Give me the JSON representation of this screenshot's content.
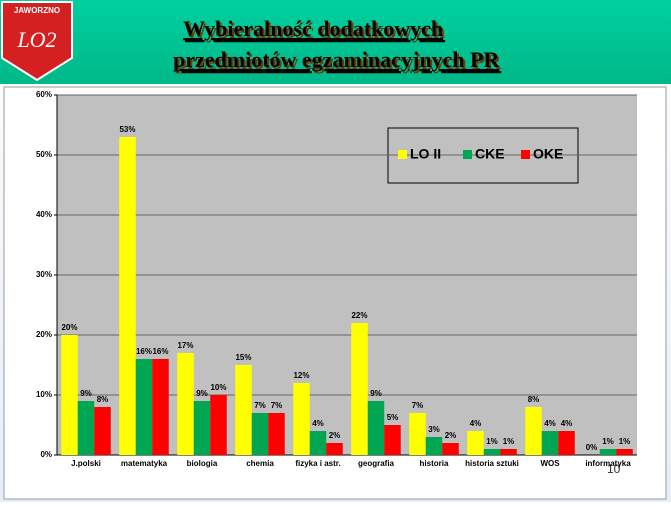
{
  "header": {
    "logo_text": "JAWORZNO",
    "logo_mark": "LO2",
    "title_lines": [
      "Wybieralność dodatkowych",
      "przedmiotów egzaminacyjnych PR"
    ]
  },
  "slide_number": "10",
  "chart_data": {
    "type": "bar",
    "categories": [
      "J.polski",
      "matematyka",
      "biologia",
      "chemia",
      "fizyka i astr.",
      "geografia",
      "historia",
      "historia sztuki",
      "WOS",
      "informatyka"
    ],
    "series": [
      {
        "name": "LO II",
        "color": "#ffff00",
        "values": [
          20,
          53,
          17,
          15,
          12,
          22,
          7,
          4,
          8,
          0
        ],
        "value_labels": [
          "20%",
          "53%",
          "17%",
          "15%",
          "12%",
          "22%",
          "7%",
          "4%",
          "8%",
          "0%"
        ]
      },
      {
        "name": "CKE",
        "color": "#00a651",
        "values": [
          9,
          16,
          9,
          7,
          4,
          9,
          3,
          1,
          4,
          1
        ],
        "value_labels": [
          "9%",
          "16%",
          "9%",
          "7%",
          "4%",
          "9%",
          "3%",
          "1%",
          "4%",
          "1%"
        ]
      },
      {
        "name": "OKE",
        "color": "#ff0000",
        "values": [
          8,
          16,
          10,
          7,
          2,
          5,
          2,
          1,
          4,
          1
        ],
        "value_labels": [
          "8%",
          "16%",
          "10%",
          "7%",
          "2%",
          "5%",
          "2%",
          "1%",
          "4%",
          "1%"
        ]
      }
    ],
    "ylim": [
      0,
      60
    ],
    "yticks": [
      {
        "value": 0,
        "label": "0%"
      },
      {
        "value": 10,
        "label": "10%"
      },
      {
        "value": 20,
        "label": "20%"
      },
      {
        "value": 30,
        "label": "30%"
      },
      {
        "value": 40,
        "label": "40%"
      },
      {
        "value": 50,
        "label": "50%"
      },
      {
        "value": 60,
        "label": "60%"
      }
    ],
    "grid": true,
    "legend": "upper right"
  }
}
